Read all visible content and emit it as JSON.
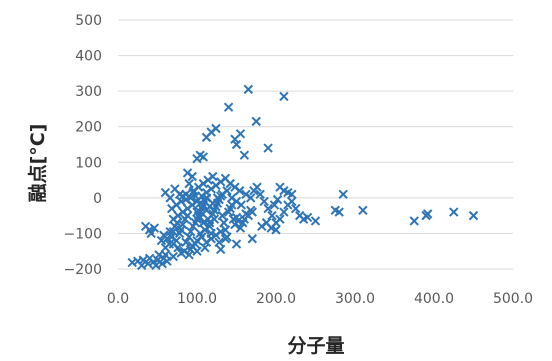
{
  "chart_data": {
    "type": "scatter",
    "xlabel": "分子量",
    "ylabel": "融点[°C]",
    "xlim": [
      0,
      500
    ],
    "ylim": [
      -200,
      500
    ],
    "xticks": [
      "0.0",
      "100.0",
      "200.0",
      "300.0",
      "400.0",
      "500.0"
    ],
    "yticks": [
      "500",
      "400",
      "300",
      "200",
      "100",
      "0",
      "−100",
      "−200"
    ],
    "grid": "horizontal",
    "legend": "none",
    "marker_color": "#2e75b6",
    "series": [
      {
        "points": [
          [
            18,
            -182
          ],
          [
            25,
            -178
          ],
          [
            30,
            -190
          ],
          [
            32,
            -175
          ],
          [
            38,
            -185
          ],
          [
            40,
            -170
          ],
          [
            45,
            -180
          ],
          [
            50,
            -175
          ],
          [
            52,
            -160
          ],
          [
            56,
            -185
          ],
          [
            58,
            -170
          ],
          [
            62,
            -178
          ],
          [
            48,
            -190
          ],
          [
            35,
            -80
          ],
          [
            40,
            -90
          ],
          [
            42,
            -100
          ],
          [
            46,
            -85
          ],
          [
            55,
            -120
          ],
          [
            60,
            -140
          ],
          [
            65,
            -130
          ],
          [
            68,
            -110
          ],
          [
            70,
            -95
          ],
          [
            72,
            -80
          ],
          [
            75,
            -70
          ],
          [
            58,
            -105
          ],
          [
            62,
            -115
          ],
          [
            66,
            -95
          ],
          [
            70,
            -130
          ],
          [
            74,
            -120
          ],
          [
            78,
            -100
          ],
          [
            80,
            -90
          ],
          [
            82,
            -75
          ],
          [
            85,
            -60
          ],
          [
            88,
            -50
          ],
          [
            90,
            -110
          ],
          [
            92,
            -95
          ],
          [
            95,
            -80
          ],
          [
            98,
            -70
          ],
          [
            100,
            -60
          ],
          [
            102,
            -50
          ],
          [
            104,
            -40
          ],
          [
            106,
            -30
          ],
          [
            108,
            -20
          ],
          [
            110,
            -10
          ],
          [
            112,
            0
          ],
          [
            114,
            -60
          ],
          [
            116,
            -80
          ],
          [
            118,
            -100
          ],
          [
            120,
            -45
          ],
          [
            122,
            -35
          ],
          [
            124,
            -25
          ],
          [
            126,
            -15
          ],
          [
            128,
            -5
          ],
          [
            130,
            5
          ],
          [
            132,
            -50
          ],
          [
            134,
            -70
          ],
          [
            136,
            -90
          ],
          [
            138,
            -110
          ],
          [
            140,
            -40
          ],
          [
            142,
            -30
          ],
          [
            144,
            -20
          ],
          [
            146,
            -60
          ],
          [
            148,
            -75
          ],
          [
            150,
            -55
          ],
          [
            152,
            -65
          ],
          [
            155,
            -85
          ],
          [
            158,
            -70
          ],
          [
            160,
            -60
          ],
          [
            162,
            -45
          ],
          [
            165,
            -50
          ],
          [
            168,
            -35
          ],
          [
            170,
            -40
          ],
          [
            86,
            -125
          ],
          [
            94,
            -135
          ],
          [
            100,
            -120
          ],
          [
            106,
            -110
          ],
          [
            112,
            -125
          ],
          [
            118,
            -115
          ],
          [
            124,
            -105
          ],
          [
            130,
            -95
          ],
          [
            76,
            -140
          ],
          [
            84,
            -150
          ],
          [
            92,
            -145
          ],
          [
            98,
            -130
          ],
          [
            104,
            -100
          ],
          [
            110,
            -90
          ],
          [
            116,
            -70
          ],
          [
            122,
            -60
          ],
          [
            88,
            -30
          ],
          [
            94,
            -20
          ],
          [
            100,
            -10
          ],
          [
            106,
            5
          ],
          [
            112,
            15
          ],
          [
            118,
            25
          ],
          [
            124,
            35
          ],
          [
            130,
            45
          ],
          [
            136,
            55
          ],
          [
            142,
            40
          ],
          [
            148,
            30
          ],
          [
            154,
            20
          ],
          [
            96,
            20
          ],
          [
            102,
            30
          ],
          [
            108,
            40
          ],
          [
            114,
            50
          ],
          [
            120,
            60
          ],
          [
            88,
            70
          ],
          [
            94,
            60
          ],
          [
            100,
            110
          ],
          [
            104,
            120
          ],
          [
            108,
            115
          ],
          [
            112,
            170
          ],
          [
            118,
            185
          ],
          [
            124,
            195
          ],
          [
            140,
            255
          ],
          [
            148,
            165
          ],
          [
            150,
            150
          ],
          [
            155,
            180
          ],
          [
            160,
            120
          ],
          [
            165,
            305
          ],
          [
            175,
            215
          ],
          [
            190,
            140
          ],
          [
            210,
            285
          ],
          [
            60,
            15
          ],
          [
            66,
            0
          ],
          [
            72,
            25
          ],
          [
            78,
            10
          ],
          [
            82,
            5
          ],
          [
            86,
            -5
          ],
          [
            90,
            40
          ],
          [
            95,
            15
          ],
          [
            100,
            -40
          ],
          [
            104,
            -55
          ],
          [
            108,
            -70
          ],
          [
            112,
            -35
          ],
          [
            116,
            -25
          ],
          [
            120,
            -15
          ],
          [
            126,
            0
          ],
          [
            132,
            10
          ],
          [
            138,
            20
          ],
          [
            144,
            0
          ],
          [
            150,
            -10
          ],
          [
            156,
            -20
          ],
          [
            162,
            10
          ],
          [
            168,
            0
          ],
          [
            172,
            20
          ],
          [
            176,
            30
          ],
          [
            180,
            10
          ],
          [
            185,
            -10
          ],
          [
            190,
            -30
          ],
          [
            195,
            -50
          ],
          [
            200,
            -70
          ],
          [
            205,
            -60
          ],
          [
            210,
            -40
          ],
          [
            215,
            -20
          ],
          [
            220,
            -10
          ],
          [
            225,
            -30
          ],
          [
            230,
            -50
          ],
          [
            235,
            -60
          ],
          [
            240,
            -55
          ],
          [
            250,
            -65
          ],
          [
            182,
            -80
          ],
          [
            188,
            -70
          ],
          [
            194,
            -85
          ],
          [
            200,
            -90
          ],
          [
            205,
            30
          ],
          [
            210,
            20
          ],
          [
            215,
            15
          ],
          [
            220,
            10
          ],
          [
            198,
            -20
          ],
          [
            202,
            -5
          ],
          [
            275,
            -35
          ],
          [
            280,
            -40
          ],
          [
            285,
            10
          ],
          [
            310,
            -35
          ],
          [
            375,
            -65
          ],
          [
            390,
            -50
          ],
          [
            392,
            -45
          ],
          [
            425,
            -40
          ],
          [
            450,
            -50
          ],
          [
            60,
            -160
          ],
          [
            70,
            -165
          ],
          [
            80,
            -155
          ],
          [
            90,
            -160
          ],
          [
            100,
            -150
          ],
          [
            110,
            -140
          ],
          [
            130,
            -145
          ],
          [
            150,
            -130
          ],
          [
            170,
            -115
          ],
          [
            128,
            -125
          ],
          [
            136,
            -115
          ],
          [
            70,
            -60
          ],
          [
            76,
            -50
          ],
          [
            82,
            -40
          ],
          [
            68,
            -30
          ],
          [
            74,
            -20
          ],
          [
            80,
            -10
          ],
          [
            86,
            10
          ],
          [
            92,
            0
          ],
          [
            98,
            5
          ],
          [
            104,
            -15
          ]
        ]
      }
    ]
  }
}
